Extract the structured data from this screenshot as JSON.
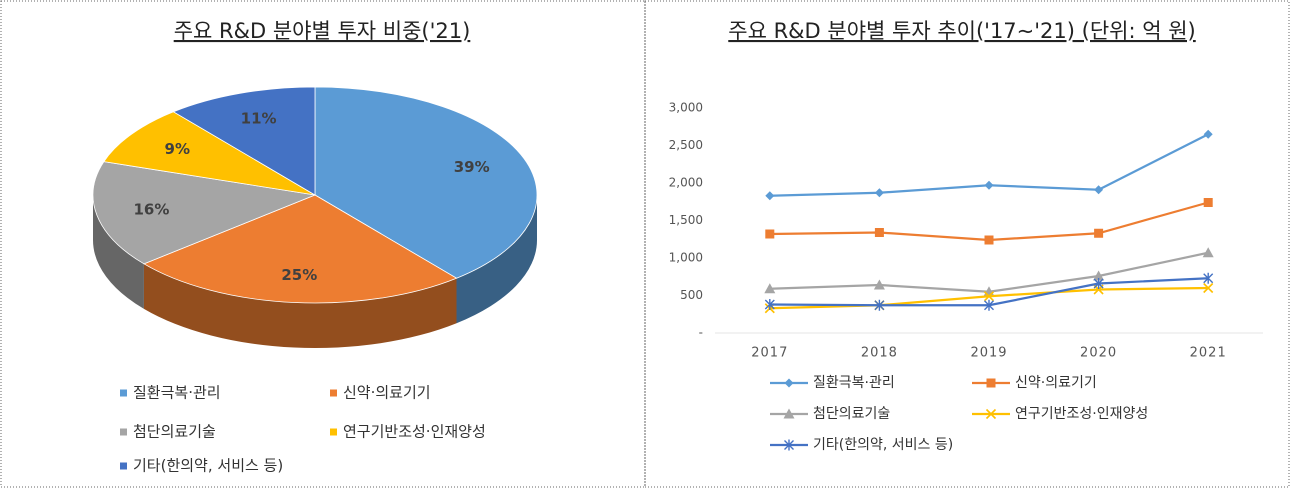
{
  "chart_data": [
    {
      "type": "pie",
      "title": "주요 R&D 분야별 투자 비중('21)",
      "categories": [
        "질환극복·관리",
        "신약·의료기기",
        "첨단의료기술",
        "연구기반조성·인재양성",
        "기타(한의약, 서비스 등)"
      ],
      "values": [
        39,
        25,
        16,
        9,
        11
      ],
      "value_labels": [
        "39%",
        "25%",
        "16%",
        "9%",
        "11%"
      ],
      "colors": [
        "#5b9bd5",
        "#ed7d31",
        "#a5a5a5",
        "#ffc000",
        "#4472c4"
      ],
      "style": "3d"
    },
    {
      "type": "line",
      "title": "주요 R&D 분야별 투자 추이('17∼'21) (단위: 억 원)",
      "categories": [
        "2017",
        "2018",
        "2019",
        "2020",
        "2021"
      ],
      "ylim": [
        0,
        3000
      ],
      "yticks": [
        {
          "value": 0,
          "label": "-"
        },
        500,
        {
          "value": 1000,
          "label": "1,000"
        },
        {
          "value": 1500,
          "label": "1,500"
        },
        {
          "value": 2000,
          "label": "2,000"
        },
        {
          "value": 2500,
          "label": "2,500"
        },
        {
          "value": 3000,
          "label": "3,000"
        }
      ],
      "grid": false,
      "series": [
        {
          "name": "질환극복·관리",
          "color": "#5b9bd5",
          "marker": "diamond",
          "values": [
            1830,
            1870,
            1970,
            1910,
            2650
          ]
        },
        {
          "name": "신약·의료기기",
          "color": "#ed7d31",
          "marker": "square",
          "values": [
            1320,
            1340,
            1240,
            1330,
            1740
          ]
        },
        {
          "name": "첨단의료기술",
          "color": "#a5a5a5",
          "marker": "triangle",
          "values": [
            590,
            640,
            550,
            760,
            1070
          ]
        },
        {
          "name": "연구기반조성·인재양성",
          "color": "#ffc000",
          "marker": "x",
          "values": [
            330,
            370,
            490,
            580,
            600
          ]
        },
        {
          "name": "기타(한의약, 서비스 등)",
          "color": "#4472c4",
          "marker": "star",
          "values": [
            380,
            370,
            370,
            660,
            730
          ]
        }
      ]
    }
  ]
}
